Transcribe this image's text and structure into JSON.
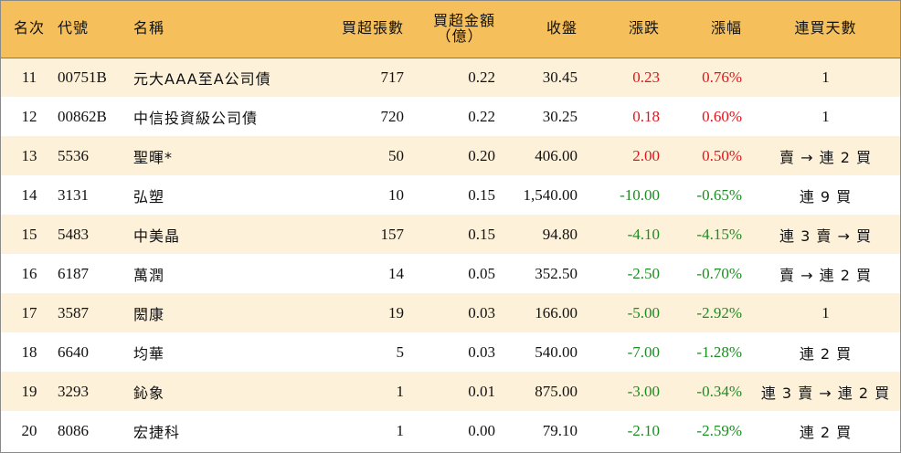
{
  "header": {
    "rank": "名次",
    "code": "代號",
    "name": "名稱",
    "net_lots": "買超張數",
    "net_amount_line1": "買超金額",
    "net_amount_line2": "（億）",
    "close": "收盤",
    "change": "漲跌",
    "change_pct": "漲幅",
    "streak": "連買天數"
  },
  "colors": {
    "header_bg": "#f5c05c",
    "row_alt_bg": "#fdf1da",
    "up": "#e0151b",
    "down": "#1d8c22"
  },
  "rows": [
    {
      "rank": "11",
      "code": "00751B",
      "name": "元大AAA至A公司債",
      "lots": "717",
      "amount": "0.22",
      "close": "30.45",
      "change": "0.23",
      "pct": "0.76%",
      "streak": "1",
      "direction": "up"
    },
    {
      "rank": "12",
      "code": "00862B",
      "name": "中信投資級公司債",
      "lots": "720",
      "amount": "0.22",
      "close": "30.25",
      "change": "0.18",
      "pct": "0.60%",
      "streak": "1",
      "direction": "up"
    },
    {
      "rank": "13",
      "code": "5536",
      "name": "聖暉*",
      "lots": "50",
      "amount": "0.20",
      "close": "406.00",
      "change": "2.00",
      "pct": "0.50%",
      "streak": "賣 → 連 2 買",
      "direction": "up"
    },
    {
      "rank": "14",
      "code": "3131",
      "name": "弘塑",
      "lots": "10",
      "amount": "0.15",
      "close": "1,540.00",
      "change": "-10.00",
      "pct": "-0.65%",
      "streak": "連 9 買",
      "direction": "down"
    },
    {
      "rank": "15",
      "code": "5483",
      "name": "中美晶",
      "lots": "157",
      "amount": "0.15",
      "close": "94.80",
      "change": "-4.10",
      "pct": "-4.15%",
      "streak": "連 3 賣 → 買",
      "direction": "down"
    },
    {
      "rank": "16",
      "code": "6187",
      "name": "萬潤",
      "lots": "14",
      "amount": "0.05",
      "close": "352.50",
      "change": "-2.50",
      "pct": "-0.70%",
      "streak": "賣 → 連 2 買",
      "direction": "down"
    },
    {
      "rank": "17",
      "code": "3587",
      "name": "閎康",
      "lots": "19",
      "amount": "0.03",
      "close": "166.00",
      "change": "-5.00",
      "pct": "-2.92%",
      "streak": "1",
      "direction": "down"
    },
    {
      "rank": "18",
      "code": "6640",
      "name": "均華",
      "lots": "5",
      "amount": "0.03",
      "close": "540.00",
      "change": "-7.00",
      "pct": "-1.28%",
      "streak": "連 2 買",
      "direction": "down"
    },
    {
      "rank": "19",
      "code": "3293",
      "name": "鈊象",
      "lots": "1",
      "amount": "0.01",
      "close": "875.00",
      "change": "-3.00",
      "pct": "-0.34%",
      "streak": "連 3 賣 → 連 2 買",
      "direction": "down"
    },
    {
      "rank": "20",
      "code": "8086",
      "name": "宏捷科",
      "lots": "1",
      "amount": "0.00",
      "close": "79.10",
      "change": "-2.10",
      "pct": "-2.59%",
      "streak": "連 2 買",
      "direction": "down"
    }
  ]
}
